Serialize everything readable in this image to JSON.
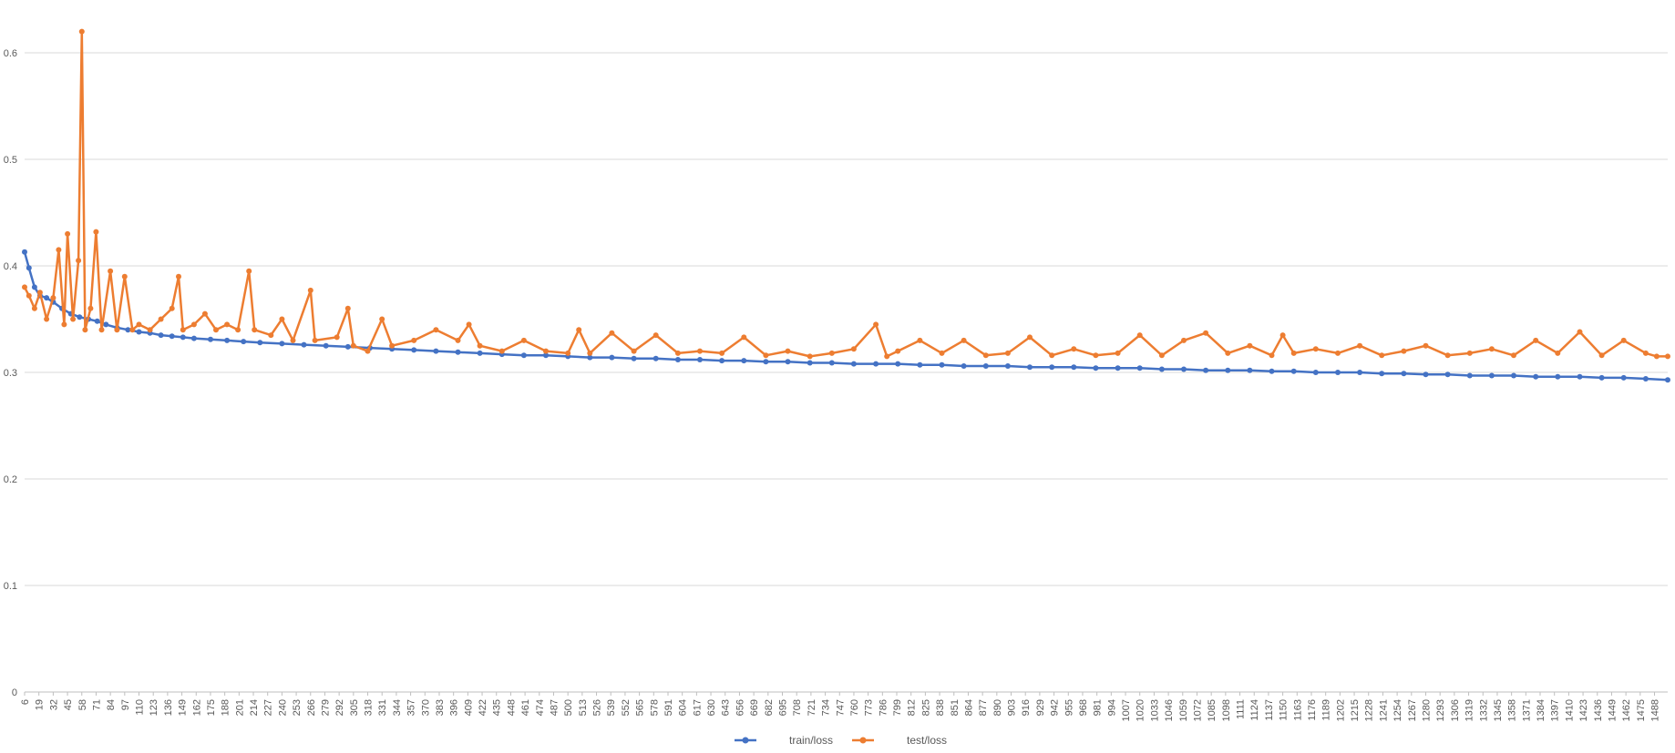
{
  "chart_data": {
    "type": "line",
    "title": "",
    "xlabel": "",
    "ylabel": "",
    "ylim": [
      0,
      0.65
    ],
    "yticks": [
      0,
      0.1,
      0.2,
      0.3,
      0.4,
      0.5,
      0.6
    ],
    "xlim": [
      6,
      1500
    ],
    "x_tick_labels": [
      "6",
      "19",
      "32",
      "45",
      "58",
      "71",
      "84",
      "97",
      "110",
      "123",
      "136",
      "149",
      "162",
      "175",
      "188",
      "201",
      "214",
      "227",
      "240",
      "253",
      "266",
      "279",
      "292",
      "305",
      "318",
      "331",
      "344",
      "357",
      "370",
      "383",
      "396",
      "409",
      "422",
      "435",
      "448",
      "461",
      "474",
      "487",
      "500",
      "513",
      "526",
      "539",
      "552",
      "565",
      "578",
      "591",
      "604",
      "617",
      "630",
      "643",
      "656",
      "669",
      "682",
      "695",
      "708",
      "721",
      "734",
      "747",
      "760",
      "773",
      "786",
      "799",
      "812",
      "825",
      "838",
      "851",
      "864",
      "877",
      "890",
      "903",
      "916",
      "929",
      "942",
      "955",
      "968",
      "981",
      "994",
      "1007",
      "1020",
      "1033",
      "1046",
      "1059",
      "1072",
      "1085",
      "1098",
      "1111",
      "1124",
      "1137",
      "1150",
      "1163",
      "1176",
      "1189",
      "1202",
      "1215",
      "1228",
      "1241",
      "1254",
      "1267",
      "1280",
      "1293",
      "1306",
      "1319",
      "1332",
      "1345",
      "1358",
      "1371",
      "1384",
      "1397",
      "1410",
      "1423",
      "1436",
      "1449",
      "1462",
      "1475",
      "1488"
    ],
    "grid": true,
    "legend": "bottom",
    "series": [
      {
        "name": "train/loss",
        "color": "#4472C4",
        "points": [
          [
            6,
            0.413
          ],
          [
            10,
            0.398
          ],
          [
            15,
            0.38
          ],
          [
            20,
            0.372
          ],
          [
            26,
            0.37
          ],
          [
            32,
            0.366
          ],
          [
            40,
            0.36
          ],
          [
            48,
            0.355
          ],
          [
            56,
            0.352
          ],
          [
            64,
            0.35
          ],
          [
            72,
            0.348
          ],
          [
            80,
            0.345
          ],
          [
            90,
            0.342
          ],
          [
            100,
            0.34
          ],
          [
            110,
            0.338
          ],
          [
            120,
            0.337
          ],
          [
            130,
            0.335
          ],
          [
            140,
            0.334
          ],
          [
            150,
            0.333
          ],
          [
            160,
            0.332
          ],
          [
            175,
            0.331
          ],
          [
            190,
            0.33
          ],
          [
            205,
            0.329
          ],
          [
            220,
            0.328
          ],
          [
            240,
            0.327
          ],
          [
            260,
            0.326
          ],
          [
            280,
            0.325
          ],
          [
            300,
            0.324
          ],
          [
            320,
            0.323
          ],
          [
            340,
            0.322
          ],
          [
            360,
            0.321
          ],
          [
            380,
            0.32
          ],
          [
            400,
            0.319
          ],
          [
            420,
            0.318
          ],
          [
            440,
            0.317
          ],
          [
            460,
            0.316
          ],
          [
            480,
            0.316
          ],
          [
            500,
            0.315
          ],
          [
            520,
            0.314
          ],
          [
            540,
            0.314
          ],
          [
            560,
            0.313
          ],
          [
            580,
            0.313
          ],
          [
            600,
            0.312
          ],
          [
            620,
            0.312
          ],
          [
            640,
            0.311
          ],
          [
            660,
            0.311
          ],
          [
            680,
            0.31
          ],
          [
            700,
            0.31
          ],
          [
            720,
            0.309
          ],
          [
            740,
            0.309
          ],
          [
            760,
            0.308
          ],
          [
            780,
            0.308
          ],
          [
            800,
            0.308
          ],
          [
            820,
            0.307
          ],
          [
            840,
            0.307
          ],
          [
            860,
            0.306
          ],
          [
            880,
            0.306
          ],
          [
            900,
            0.306
          ],
          [
            920,
            0.305
          ],
          [
            940,
            0.305
          ],
          [
            960,
            0.305
          ],
          [
            980,
            0.304
          ],
          [
            1000,
            0.304
          ],
          [
            1020,
            0.304
          ],
          [
            1040,
            0.303
          ],
          [
            1060,
            0.303
          ],
          [
            1080,
            0.302
          ],
          [
            1100,
            0.302
          ],
          [
            1120,
            0.302
          ],
          [
            1140,
            0.301
          ],
          [
            1160,
            0.301
          ],
          [
            1180,
            0.3
          ],
          [
            1200,
            0.3
          ],
          [
            1220,
            0.3
          ],
          [
            1240,
            0.299
          ],
          [
            1260,
            0.299
          ],
          [
            1280,
            0.298
          ],
          [
            1300,
            0.298
          ],
          [
            1320,
            0.297
          ],
          [
            1340,
            0.297
          ],
          [
            1360,
            0.297
          ],
          [
            1380,
            0.296
          ],
          [
            1400,
            0.296
          ],
          [
            1420,
            0.296
          ],
          [
            1440,
            0.295
          ],
          [
            1460,
            0.295
          ],
          [
            1480,
            0.294
          ],
          [
            1500,
            0.293
          ]
        ]
      },
      {
        "name": "test/loss",
        "color": "#ED7D31",
        "points": [
          [
            6,
            0.38
          ],
          [
            10,
            0.372
          ],
          [
            15,
            0.36
          ],
          [
            20,
            0.375
          ],
          [
            26,
            0.35
          ],
          [
            32,
            0.37
          ],
          [
            37,
            0.415
          ],
          [
            42,
            0.345
          ],
          [
            45,
            0.43
          ],
          [
            50,
            0.35
          ],
          [
            55,
            0.405
          ],
          [
            58,
            0.62
          ],
          [
            61,
            0.34
          ],
          [
            66,
            0.36
          ],
          [
            71,
            0.432
          ],
          [
            76,
            0.34
          ],
          [
            84,
            0.395
          ],
          [
            90,
            0.34
          ],
          [
            97,
            0.39
          ],
          [
            104,
            0.34
          ],
          [
            110,
            0.345
          ],
          [
            120,
            0.34
          ],
          [
            130,
            0.35
          ],
          [
            140,
            0.36
          ],
          [
            146,
            0.39
          ],
          [
            150,
            0.34
          ],
          [
            160,
            0.345
          ],
          [
            170,
            0.355
          ],
          [
            180,
            0.34
          ],
          [
            190,
            0.345
          ],
          [
            200,
            0.34
          ],
          [
            210,
            0.395
          ],
          [
            215,
            0.34
          ],
          [
            230,
            0.335
          ],
          [
            240,
            0.35
          ],
          [
            250,
            0.33
          ],
          [
            266,
            0.377
          ],
          [
            270,
            0.33
          ],
          [
            290,
            0.333
          ],
          [
            300,
            0.36
          ],
          [
            305,
            0.325
          ],
          [
            318,
            0.32
          ],
          [
            331,
            0.35
          ],
          [
            340,
            0.325
          ],
          [
            360,
            0.33
          ],
          [
            380,
            0.34
          ],
          [
            400,
            0.33
          ],
          [
            410,
            0.345
          ],
          [
            420,
            0.325
          ],
          [
            440,
            0.32
          ],
          [
            460,
            0.33
          ],
          [
            480,
            0.32
          ],
          [
            500,
            0.318
          ],
          [
            510,
            0.34
          ],
          [
            520,
            0.318
          ],
          [
            540,
            0.337
          ],
          [
            560,
            0.32
          ],
          [
            580,
            0.335
          ],
          [
            600,
            0.318
          ],
          [
            620,
            0.32
          ],
          [
            640,
            0.318
          ],
          [
            660,
            0.333
          ],
          [
            680,
            0.316
          ],
          [
            700,
            0.32
          ],
          [
            720,
            0.315
          ],
          [
            740,
            0.318
          ],
          [
            760,
            0.322
          ],
          [
            780,
            0.345
          ],
          [
            790,
            0.315
          ],
          [
            800,
            0.32
          ],
          [
            820,
            0.33
          ],
          [
            840,
            0.318
          ],
          [
            860,
            0.33
          ],
          [
            880,
            0.316
          ],
          [
            900,
            0.318
          ],
          [
            920,
            0.333
          ],
          [
            940,
            0.316
          ],
          [
            960,
            0.322
          ],
          [
            980,
            0.316
          ],
          [
            1000,
            0.318
          ],
          [
            1020,
            0.335
          ],
          [
            1040,
            0.316
          ],
          [
            1060,
            0.33
          ],
          [
            1080,
            0.337
          ],
          [
            1100,
            0.318
          ],
          [
            1120,
            0.325
          ],
          [
            1140,
            0.316
          ],
          [
            1150,
            0.335
          ],
          [
            1160,
            0.318
          ],
          [
            1180,
            0.322
          ],
          [
            1200,
            0.318
          ],
          [
            1220,
            0.325
          ],
          [
            1240,
            0.316
          ],
          [
            1260,
            0.32
          ],
          [
            1280,
            0.325
          ],
          [
            1300,
            0.316
          ],
          [
            1320,
            0.318
          ],
          [
            1340,
            0.322
          ],
          [
            1360,
            0.316
          ],
          [
            1380,
            0.33
          ],
          [
            1400,
            0.318
          ],
          [
            1420,
            0.338
          ],
          [
            1440,
            0.316
          ],
          [
            1460,
            0.33
          ],
          [
            1480,
            0.318
          ],
          [
            1490,
            0.315
          ],
          [
            1500,
            0.315
          ]
        ]
      }
    ]
  }
}
